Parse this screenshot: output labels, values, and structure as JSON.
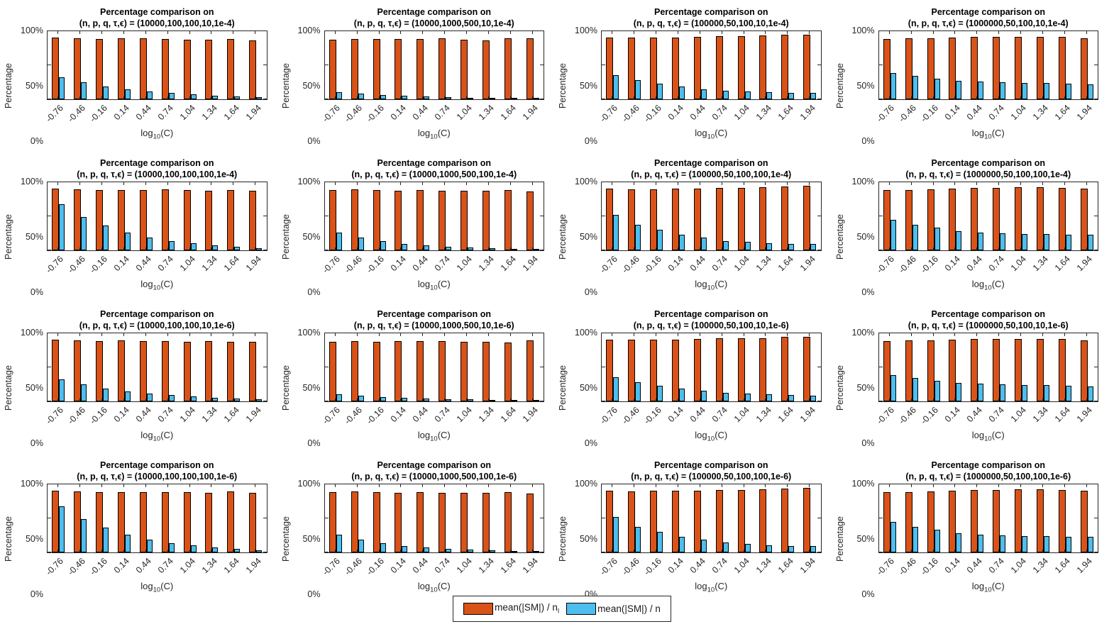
{
  "figure": {
    "ylabel": "Percentage",
    "xlabel": {
      "prefix": "log",
      "sub": "10",
      "suffix": "(C)"
    },
    "ytick_labels": [
      "100%",
      "50%",
      "0%"
    ],
    "colors": {
      "orange": "#D95319",
      "blue": "#4DBEEE",
      "axis": "#262626"
    },
    "legend": {
      "series1_main": "mean(|SM|) / n",
      "series1_sub": "l",
      "series2_main": "mean(|SM|) / n"
    }
  },
  "chart_data": [
    {
      "type": "bar",
      "title": "Percentage comparison on",
      "subtitle": "(n, p, q, τ,ϵ) = (10000,100,100,10,1e-4)",
      "xlabel": "log10(C)",
      "ylabel": "Percentage",
      "ylim": [
        0,
        100
      ],
      "yticks": [
        0,
        50,
        100
      ],
      "legend_position": "south-outside",
      "grid": false,
      "categories": [
        -0.76,
        -0.46,
        -0.16,
        0.14,
        0.44,
        0.74,
        1.04,
        1.34,
        1.64,
        1.94
      ],
      "series": [
        {
          "name": "mean(|SM|) / n_l",
          "color": "#D95319",
          "values": [
            91,
            90,
            89,
            90,
            90,
            89,
            88,
            88,
            89,
            86
          ]
        },
        {
          "name": "mean(|SM|) / n",
          "color": "#4DBEEE",
          "values": [
            32,
            25,
            19,
            15,
            11,
            9,
            7,
            5,
            4,
            3
          ]
        }
      ]
    },
    {
      "type": "bar",
      "title": "Percentage comparison on",
      "subtitle": "(n, p, q, τ,ϵ) = (10000,1000,500,10,1e-4)",
      "xlabel": "log10(C)",
      "ylabel": "Percentage",
      "ylim": [
        0,
        100
      ],
      "yticks": [
        0,
        50,
        100
      ],
      "grid": false,
      "categories": [
        -0.76,
        -0.46,
        -0.16,
        0.14,
        0.44,
        0.74,
        1.04,
        1.34,
        1.64,
        1.94
      ],
      "series": [
        {
          "name": "mean(|SM|) / n_l",
          "color": "#D95319",
          "values": [
            88,
            89,
            89,
            89,
            89,
            90,
            88,
            86,
            90,
            90
          ]
        },
        {
          "name": "mean(|SM|) / n",
          "color": "#4DBEEE",
          "values": [
            10,
            8,
            6,
            5,
            4,
            3,
            2,
            2,
            1,
            1
          ]
        }
      ]
    },
    {
      "type": "bar",
      "title": "Percentage comparison on",
      "subtitle": "(n, p, q, τ,ϵ) = (100000,50,100,10,1e-4)",
      "xlabel": "log10(C)",
      "ylabel": "Percentage",
      "ylim": [
        0,
        100
      ],
      "yticks": [
        0,
        50,
        100
      ],
      "grid": false,
      "categories": [
        -0.76,
        -0.46,
        -0.16,
        0.14,
        0.44,
        0.74,
        1.04,
        1.34,
        1.64,
        1.94
      ],
      "series": [
        {
          "name": "mean(|SM|) / n_l",
          "color": "#D95319",
          "values": [
            91,
            91,
            91,
            91,
            92,
            93,
            93,
            94,
            95,
            95
          ]
        },
        {
          "name": "mean(|SM|) / n",
          "color": "#4DBEEE",
          "values": [
            35,
            28,
            23,
            19,
            15,
            13,
            11,
            10,
            9,
            9
          ]
        }
      ]
    },
    {
      "type": "bar",
      "title": "Percentage comparison on",
      "subtitle": "(n, p, q, τ,ϵ) = (1000000,50,100,10,1e-4)",
      "xlabel": "log10(C)",
      "ylabel": "Percentage",
      "ylim": [
        0,
        100
      ],
      "yticks": [
        0,
        50,
        100
      ],
      "grid": false,
      "categories": [
        -0.76,
        -0.46,
        -0.16,
        0.14,
        0.44,
        0.74,
        1.04,
        1.34,
        1.64,
        1.94
      ],
      "series": [
        {
          "name": "mean(|SM|) / n_l",
          "color": "#D95319",
          "values": [
            89,
            90,
            90,
            91,
            92,
            92,
            92,
            92,
            92,
            90
          ]
        },
        {
          "name": "mean(|SM|) / n",
          "color": "#4DBEEE",
          "values": [
            39,
            34,
            30,
            27,
            26,
            25,
            24,
            24,
            23,
            22
          ]
        }
      ]
    },
    {
      "type": "bar",
      "title": "Percentage comparison on",
      "subtitle": "(n, p, q, τ,ϵ) = (10000,100,100,100,1e-4)",
      "xlabel": "log10(C)",
      "ylabel": "Percentage",
      "ylim": [
        0,
        100
      ],
      "yticks": [
        0,
        50,
        100
      ],
      "grid": false,
      "categories": [
        -0.76,
        -0.46,
        -0.16,
        0.14,
        0.44,
        0.74,
        1.04,
        1.34,
        1.64,
        1.94
      ],
      "series": [
        {
          "name": "mean(|SM|) / n_l",
          "color": "#D95319",
          "values": [
            91,
            90,
            89,
            89,
            89,
            90,
            89,
            87,
            89,
            87
          ]
        },
        {
          "name": "mean(|SM|) / n",
          "color": "#4DBEEE",
          "values": [
            68,
            49,
            36,
            26,
            19,
            14,
            10,
            7,
            5,
            3
          ]
        }
      ]
    },
    {
      "type": "bar",
      "title": "Percentage comparison on",
      "subtitle": "(n, p, q, τ,ϵ) = (10000,1000,500,100,1e-4)",
      "xlabel": "log10(C)",
      "ylabel": "Percentage",
      "ylim": [
        0,
        100
      ],
      "yticks": [
        0,
        50,
        100
      ],
      "grid": false,
      "categories": [
        -0.76,
        -0.46,
        -0.16,
        0.14,
        0.44,
        0.74,
        1.04,
        1.34,
        1.64,
        1.94
      ],
      "series": [
        {
          "name": "mean(|SM|) / n_l",
          "color": "#D95319",
          "values": [
            89,
            90,
            89,
            87,
            89,
            88,
            88,
            88,
            89,
            86
          ]
        },
        {
          "name": "mean(|SM|) / n",
          "color": "#4DBEEE",
          "values": [
            26,
            19,
            14,
            9,
            7,
            5,
            4,
            3,
            2,
            1
          ]
        }
      ]
    },
    {
      "type": "bar",
      "title": "Percentage comparison on",
      "subtitle": "(n, p, q, τ,ϵ) = (100000,50,100,100,1e-4)",
      "xlabel": "log10(C)",
      "ylabel": "Percentage",
      "ylim": [
        0,
        100
      ],
      "yticks": [
        0,
        50,
        100
      ],
      "grid": false,
      "categories": [
        -0.76,
        -0.46,
        -0.16,
        0.14,
        0.44,
        0.74,
        1.04,
        1.34,
        1.64,
        1.94
      ],
      "series": [
        {
          "name": "mean(|SM|) / n_l",
          "color": "#D95319",
          "values": [
            91,
            90,
            90,
            91,
            91,
            92,
            92,
            93,
            94,
            95
          ]
        },
        {
          "name": "mean(|SM|) / n",
          "color": "#4DBEEE",
          "values": [
            52,
            38,
            30,
            23,
            19,
            14,
            12,
            10,
            9,
            9
          ]
        }
      ]
    },
    {
      "type": "bar",
      "title": "Percentage comparison on",
      "subtitle": "(n, p, q, τ,ϵ) = (1000000,50,100,100,1e-4)",
      "xlabel": "log10(C)",
      "ylabel": "Percentage",
      "ylim": [
        0,
        100
      ],
      "yticks": [
        0,
        50,
        100
      ],
      "grid": false,
      "categories": [
        -0.76,
        -0.46,
        -0.16,
        0.14,
        0.44,
        0.74,
        1.04,
        1.34,
        1.64,
        1.94
      ],
      "series": [
        {
          "name": "mean(|SM|) / n_l",
          "color": "#D95319",
          "values": [
            89,
            89,
            90,
            91,
            92,
            92,
            93,
            93,
            92,
            91
          ]
        },
        {
          "name": "mean(|SM|) / n",
          "color": "#4DBEEE",
          "values": [
            45,
            38,
            33,
            28,
            26,
            25,
            24,
            24,
            23,
            23
          ]
        }
      ]
    },
    {
      "type": "bar",
      "title": "Percentage comparison on",
      "subtitle": "(n, p, q, τ,ϵ) = (10000,100,100,10,1e-6)",
      "xlabel": "log10(C)",
      "ylabel": "Percentage",
      "ylim": [
        0,
        100
      ],
      "yticks": [
        0,
        50,
        100
      ],
      "grid": false,
      "categories": [
        -0.76,
        -0.46,
        -0.16,
        0.14,
        0.44,
        0.74,
        1.04,
        1.34,
        1.64,
        1.94
      ],
      "series": [
        {
          "name": "mean(|SM|) / n_l",
          "color": "#D95319",
          "values": [
            91,
            90,
            89,
            90,
            89,
            89,
            88,
            89,
            88,
            87
          ]
        },
        {
          "name": "mean(|SM|) / n",
          "color": "#4DBEEE",
          "values": [
            32,
            25,
            19,
            15,
            11,
            9,
            7,
            5,
            4,
            3
          ]
        }
      ]
    },
    {
      "type": "bar",
      "title": "Percentage comparison on",
      "subtitle": "(n, p, q, τ,ϵ) = (10000,1000,500,10,1e-6)",
      "xlabel": "log10(C)",
      "ylabel": "Percentage",
      "ylim": [
        0,
        100
      ],
      "yticks": [
        0,
        50,
        100
      ],
      "grid": false,
      "categories": [
        -0.76,
        -0.46,
        -0.16,
        0.14,
        0.44,
        0.74,
        1.04,
        1.34,
        1.64,
        1.94
      ],
      "series": [
        {
          "name": "mean(|SM|) / n_l",
          "color": "#D95319",
          "values": [
            88,
            89,
            88,
            89,
            89,
            89,
            88,
            87,
            86,
            90
          ]
        },
        {
          "name": "mean(|SM|) / n",
          "color": "#4DBEEE",
          "values": [
            10,
            8,
            6,
            5,
            4,
            3,
            3,
            2,
            1,
            1
          ]
        }
      ]
    },
    {
      "type": "bar",
      "title": "Percentage comparison on",
      "subtitle": "(n, p, q, τ,ϵ) = (100000,50,100,10,1e-6)",
      "xlabel": "log10(C)",
      "ylabel": "Percentage",
      "ylim": [
        0,
        100
      ],
      "yticks": [
        0,
        50,
        100
      ],
      "grid": false,
      "categories": [
        -0.76,
        -0.46,
        -0.16,
        0.14,
        0.44,
        0.74,
        1.04,
        1.34,
        1.64,
        1.94
      ],
      "series": [
        {
          "name": "mean(|SM|) / n_l",
          "color": "#D95319",
          "values": [
            91,
            91,
            91,
            91,
            92,
            93,
            93,
            93,
            95,
            95
          ]
        },
        {
          "name": "mean(|SM|) / n",
          "color": "#4DBEEE",
          "values": [
            35,
            28,
            23,
            19,
            16,
            13,
            11,
            10,
            9,
            8
          ]
        }
      ]
    },
    {
      "type": "bar",
      "title": "Percentage comparison on",
      "subtitle": "(n, p, q, τ,ϵ) = (1000000,50,100,10,1e-6)",
      "xlabel": "log10(C)",
      "ylabel": "Percentage",
      "ylim": [
        0,
        100
      ],
      "yticks": [
        0,
        50,
        100
      ],
      "grid": false,
      "categories": [
        -0.76,
        -0.46,
        -0.16,
        0.14,
        0.44,
        0.74,
        1.04,
        1.34,
        1.64,
        1.94
      ],
      "series": [
        {
          "name": "mean(|SM|) / n_l",
          "color": "#D95319",
          "values": [
            89,
            90,
            90,
            91,
            92,
            92,
            92,
            92,
            92,
            90
          ]
        },
        {
          "name": "mean(|SM|) / n",
          "color": "#4DBEEE",
          "values": [
            39,
            34,
            30,
            27,
            26,
            25,
            24,
            24,
            23,
            22
          ]
        }
      ]
    },
    {
      "type": "bar",
      "title": "Percentage comparison on",
      "subtitle": "(n, p, q, τ,ϵ) = (10000,100,100,100,1e-6)",
      "xlabel": "log10(C)",
      "ylabel": "Percentage",
      "ylim": [
        0,
        100
      ],
      "yticks": [
        0,
        50,
        100
      ],
      "grid": false,
      "categories": [
        -0.76,
        -0.46,
        -0.16,
        0.14,
        0.44,
        0.74,
        1.04,
        1.34,
        1.64,
        1.94
      ],
      "series": [
        {
          "name": "mean(|SM|) / n_l",
          "color": "#D95319",
          "values": [
            91,
            90,
            89,
            89,
            89,
            89,
            89,
            87,
            90,
            88
          ]
        },
        {
          "name": "mean(|SM|) / n",
          "color": "#4DBEEE",
          "values": [
            68,
            49,
            36,
            26,
            19,
            14,
            10,
            7,
            5,
            3
          ]
        }
      ]
    },
    {
      "type": "bar",
      "title": "Percentage comparison on",
      "subtitle": "(n, p, q, τ,ϵ) = (10000,1000,500,100,1e-6)",
      "xlabel": "log10(C)",
      "ylabel": "Percentage",
      "ylim": [
        0,
        100
      ],
      "yticks": [
        0,
        50,
        100
      ],
      "grid": false,
      "categories": [
        -0.76,
        -0.46,
        -0.16,
        0.14,
        0.44,
        0.74,
        1.04,
        1.34,
        1.64,
        1.94
      ],
      "series": [
        {
          "name": "mean(|SM|) / n_l",
          "color": "#D95319",
          "values": [
            89,
            90,
            89,
            87,
            89,
            88,
            88,
            87,
            89,
            86
          ]
        },
        {
          "name": "mean(|SM|) / n",
          "color": "#4DBEEE",
          "values": [
            26,
            19,
            14,
            9,
            7,
            5,
            4,
            3,
            2,
            1
          ]
        }
      ]
    },
    {
      "type": "bar",
      "title": "Percentage comparison on",
      "subtitle": "(n, p, q, τ,ϵ) = (100000,50,100,100,1e-6)",
      "xlabel": "log10(C)",
      "ylabel": "Percentage",
      "ylim": [
        0,
        100
      ],
      "yticks": [
        0,
        50,
        100
      ],
      "grid": false,
      "categories": [
        -0.76,
        -0.46,
        -0.16,
        0.14,
        0.44,
        0.74,
        1.04,
        1.34,
        1.64,
        1.94
      ],
      "series": [
        {
          "name": "mean(|SM|) / n_l",
          "color": "#D95319",
          "values": [
            91,
            90,
            91,
            91,
            91,
            92,
            92,
            93,
            94,
            95
          ]
        },
        {
          "name": "mean(|SM|) / n",
          "color": "#4DBEEE",
          "values": [
            52,
            38,
            30,
            23,
            19,
            15,
            12,
            10,
            9,
            9
          ]
        }
      ]
    },
    {
      "type": "bar",
      "title": "Percentage comparison on",
      "subtitle": "(n, p, q, τ,ϵ) = (1000000,50,100,100,1e-6)",
      "xlabel": "log10(C)",
      "ylabel": "Percentage",
      "ylim": [
        0,
        100
      ],
      "yticks": [
        0,
        50,
        100
      ],
      "grid": false,
      "categories": [
        -0.76,
        -0.46,
        -0.16,
        0.14,
        0.44,
        0.74,
        1.04,
        1.34,
        1.64,
        1.94
      ],
      "series": [
        {
          "name": "mean(|SM|) / n_l",
          "color": "#D95319",
          "values": [
            89,
            89,
            90,
            91,
            92,
            92,
            93,
            93,
            92,
            91
          ]
        },
        {
          "name": "mean(|SM|) / n",
          "color": "#4DBEEE",
          "values": [
            45,
            38,
            33,
            28,
            26,
            25,
            24,
            24,
            23,
            23
          ]
        }
      ]
    }
  ]
}
